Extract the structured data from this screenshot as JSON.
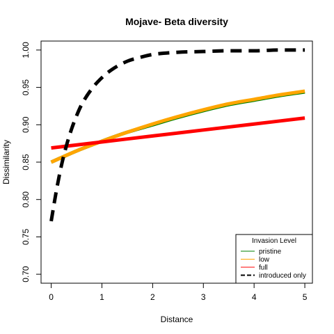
{
  "chart_data": {
    "type": "line",
    "title": "Mojave- Beta diversity",
    "xlabel": "Distance",
    "ylabel": "Dissimilarity",
    "xlim": [
      -0.2,
      5.15
    ],
    "ylim": [
      0.688,
      1.012
    ],
    "xticks": [
      {
        "value": 0,
        "label": "0"
      },
      {
        "value": 1,
        "label": "1"
      },
      {
        "value": 2,
        "label": "2"
      },
      {
        "value": 3,
        "label": "3"
      },
      {
        "value": 4,
        "label": "4"
      },
      {
        "value": 5,
        "label": "5"
      }
    ],
    "yticks": [
      {
        "value": 0.7,
        "label": "0.70"
      },
      {
        "value": 0.75,
        "label": "0.75"
      },
      {
        "value": 0.8,
        "label": "0.80"
      },
      {
        "value": 0.85,
        "label": "0.85"
      },
      {
        "value": 0.9,
        "label": "0.90"
      },
      {
        "value": 0.95,
        "label": "0.95"
      },
      {
        "value": 1.0,
        "label": "1.00"
      }
    ],
    "grid": false,
    "legend": {
      "title": "Invasion Level",
      "placement": "bottom-right",
      "entries": [
        {
          "label": "pristine",
          "color": "#008000",
          "dash": false
        },
        {
          "label": "low",
          "color": "#FFA500",
          "dash": false
        },
        {
          "label": "full",
          "color": "#FF0000",
          "dash": false
        },
        {
          "label": "introduced only",
          "color": "#000000",
          "dash": true
        }
      ]
    },
    "series": [
      {
        "name": "pristine",
        "color": "#008000",
        "dash": false,
        "x": [
          0,
          0.5,
          1,
          1.5,
          2,
          2.5,
          3,
          3.5,
          4,
          4.5,
          5
        ],
        "y": [
          0.85,
          0.865,
          0.878,
          0.89,
          0.9,
          0.91,
          0.919,
          0.927,
          0.933,
          0.939,
          0.944
        ]
      },
      {
        "name": "low",
        "color": "#FFA500",
        "dash": false,
        "x": [
          0,
          0.5,
          1,
          1.5,
          2,
          2.5,
          3,
          3.5,
          4,
          4.5,
          5
        ],
        "y": [
          0.85,
          0.865,
          0.878,
          0.89,
          0.901,
          0.911,
          0.92,
          0.928,
          0.934,
          0.94,
          0.945
        ]
      },
      {
        "name": "full",
        "color": "#FF0000",
        "dash": false,
        "x": [
          0,
          1,
          2,
          3,
          4,
          5
        ],
        "y": [
          0.869,
          0.877,
          0.885,
          0.893,
          0.901,
          0.909
        ]
      },
      {
        "name": "introduced only",
        "color": "#000000",
        "dash": true,
        "x": [
          0,
          0.1,
          0.2,
          0.3,
          0.4,
          0.5,
          0.6,
          0.8,
          1.0,
          1.2,
          1.5,
          1.8,
          2.0,
          2.5,
          3.0,
          3.5,
          4.0,
          4.5,
          5.0
        ],
        "y": [
          0.771,
          0.811,
          0.845,
          0.872,
          0.894,
          0.912,
          0.927,
          0.948,
          0.963,
          0.974,
          0.985,
          0.991,
          0.994,
          0.997,
          0.998,
          0.999,
          0.999,
          1.0,
          1.0
        ]
      }
    ]
  }
}
